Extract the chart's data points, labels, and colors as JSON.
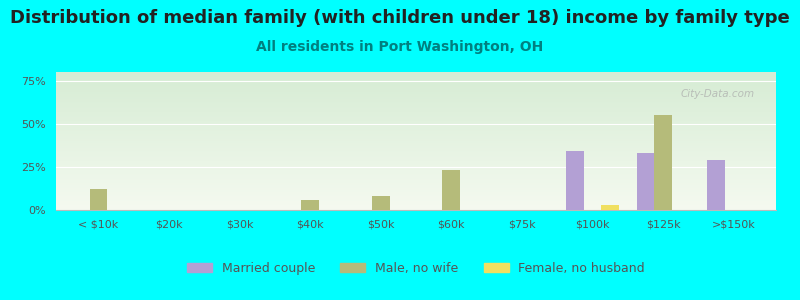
{
  "title": "Distribution of median family (with children under 18) income by family type",
  "subtitle": "All residents in Port Washington, OH",
  "categories": [
    "< $10k",
    "$20k",
    "$30k",
    "$40k",
    "$50k",
    "$60k",
    "$75k",
    "$100k",
    "$125k",
    ">$150k"
  ],
  "married_couple": [
    0,
    0,
    0,
    0,
    0,
    0,
    0,
    34,
    33,
    29
  ],
  "male_no_wife": [
    12,
    0,
    0,
    6,
    8,
    23,
    0,
    0,
    55,
    0
  ],
  "female_no_husband": [
    0,
    0,
    0,
    0,
    0,
    0,
    0,
    3,
    0,
    0
  ],
  "married_color": "#b3a0d4",
  "male_color": "#b5bb7a",
  "female_color": "#f0e060",
  "bg_color": "#00ffff",
  "bar_width": 0.25,
  "ylim": [
    0,
    80
  ],
  "yticks": [
    0,
    25,
    50,
    75
  ],
  "ytick_labels": [
    "0%",
    "25%",
    "50%",
    "75%"
  ],
  "watermark": "City-Data.com",
  "title_fontsize": 13,
  "subtitle_fontsize": 10,
  "axis_fontsize": 8,
  "legend_fontsize": 9
}
